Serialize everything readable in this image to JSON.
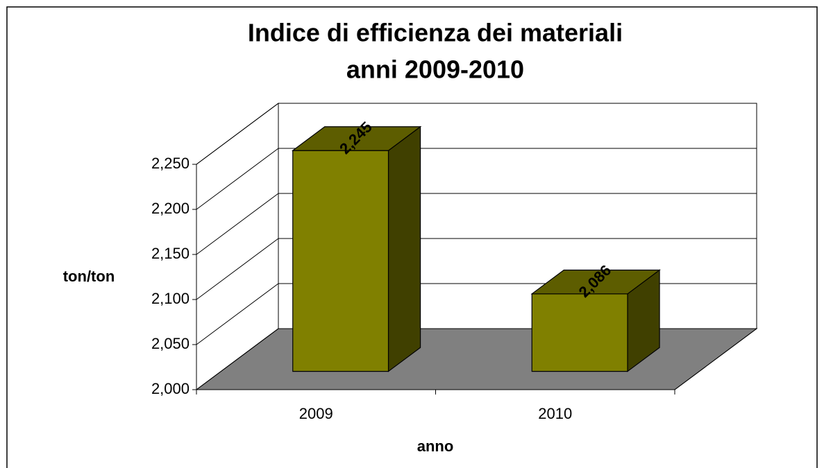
{
  "chart_data": {
    "type": "bar3d",
    "title": [
      "Indice di efficienza dei materiali",
      "anni 2009-2010"
    ],
    "xlabel": "anno",
    "ylabel": "ton/ton",
    "categories": [
      "2009",
      "2010"
    ],
    "values": [
      2.245,
      2.086
    ],
    "value_labels": [
      "2,245",
      "2,086"
    ],
    "color": "#808000",
    "ylim": [
      2,
      2.25
    ],
    "yticks": [
      {
        "value": 2,
        "label": "2,000"
      },
      {
        "value": 2.05,
        "label": "2,050"
      },
      {
        "value": 2.1,
        "label": "2,100"
      },
      {
        "value": 2.15,
        "label": "2,150"
      },
      {
        "value": 2.2,
        "label": "2,200"
      },
      {
        "value": 2.25,
        "label": "2,250"
      }
    ],
    "grid": true
  }
}
